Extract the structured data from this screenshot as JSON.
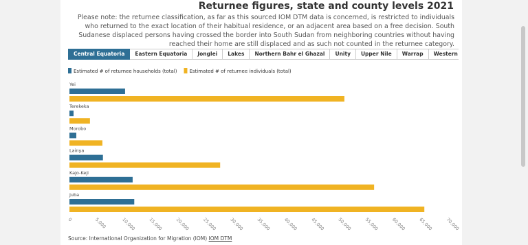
{
  "page": {
    "title": "Returnee figures, state and county levels 2021",
    "note": "Please note: the returnee classification, as far as this sourced IOM DTM data is concerned, is restricted to individuals who returned to the exact location of their habitual residence, or an adjacent area based on a free decision. South Sudanese displaced persons having crossed the border into South Sudan from neighboring countries without having reached their home are still displaced and as such not counted in the returnee category.",
    "tabs": [
      "Central Equatoria",
      "Eastern Equatoria",
      "Jonglei",
      "Lakes",
      "Northern Bahr el Ghazal",
      "Unity",
      "Upper Nile",
      "Warrap",
      "Western Bahr el Ghazal",
      "Western"
    ],
    "source": "Source: International Organization for Migration (IOM)",
    "source_link": "IOM DTM"
  },
  "chart_data": {
    "type": "hbar",
    "categories": [
      "Yei",
      "Terekeka",
      "Morobo",
      "Lainya",
      "Kajo-Keji",
      "Juba"
    ],
    "series": [
      {
        "name": "Estimated # of returnee households (total)",
        "color": "#2e6f95",
        "values": [
          10300,
          760,
          1270,
          6200,
          11700,
          12000
        ]
      },
      {
        "name": "Estimated # of returnee individuals (total)",
        "color": "#f0b323",
        "values": [
          50900,
          3800,
          6100,
          27900,
          56400,
          65700
        ]
      }
    ],
    "xlim": [
      0,
      70000
    ],
    "xticks": [
      0,
      {
        "value": 5000,
        "label": "5,000"
      },
      {
        "value": 10000,
        "label": "10,000"
      },
      {
        "value": 15000,
        "label": "15,000"
      },
      {
        "value": 20000,
        "label": "20,000"
      },
      {
        "value": 25000,
        "label": "25,000"
      },
      {
        "value": 30000,
        "label": "30,000"
      },
      {
        "value": 35000,
        "label": "35,000"
      },
      {
        "value": 40000,
        "label": "40,000"
      },
      {
        "value": 45000,
        "label": "45,000"
      },
      {
        "value": 50000,
        "label": "50,000"
      },
      {
        "value": 55000,
        "label": "55,000"
      },
      {
        "value": 60000,
        "label": "60,000"
      },
      {
        "value": 65000,
        "label": "65,000"
      },
      {
        "value": 70000,
        "label": "70,000"
      }
    ],
    "grid": false
  }
}
